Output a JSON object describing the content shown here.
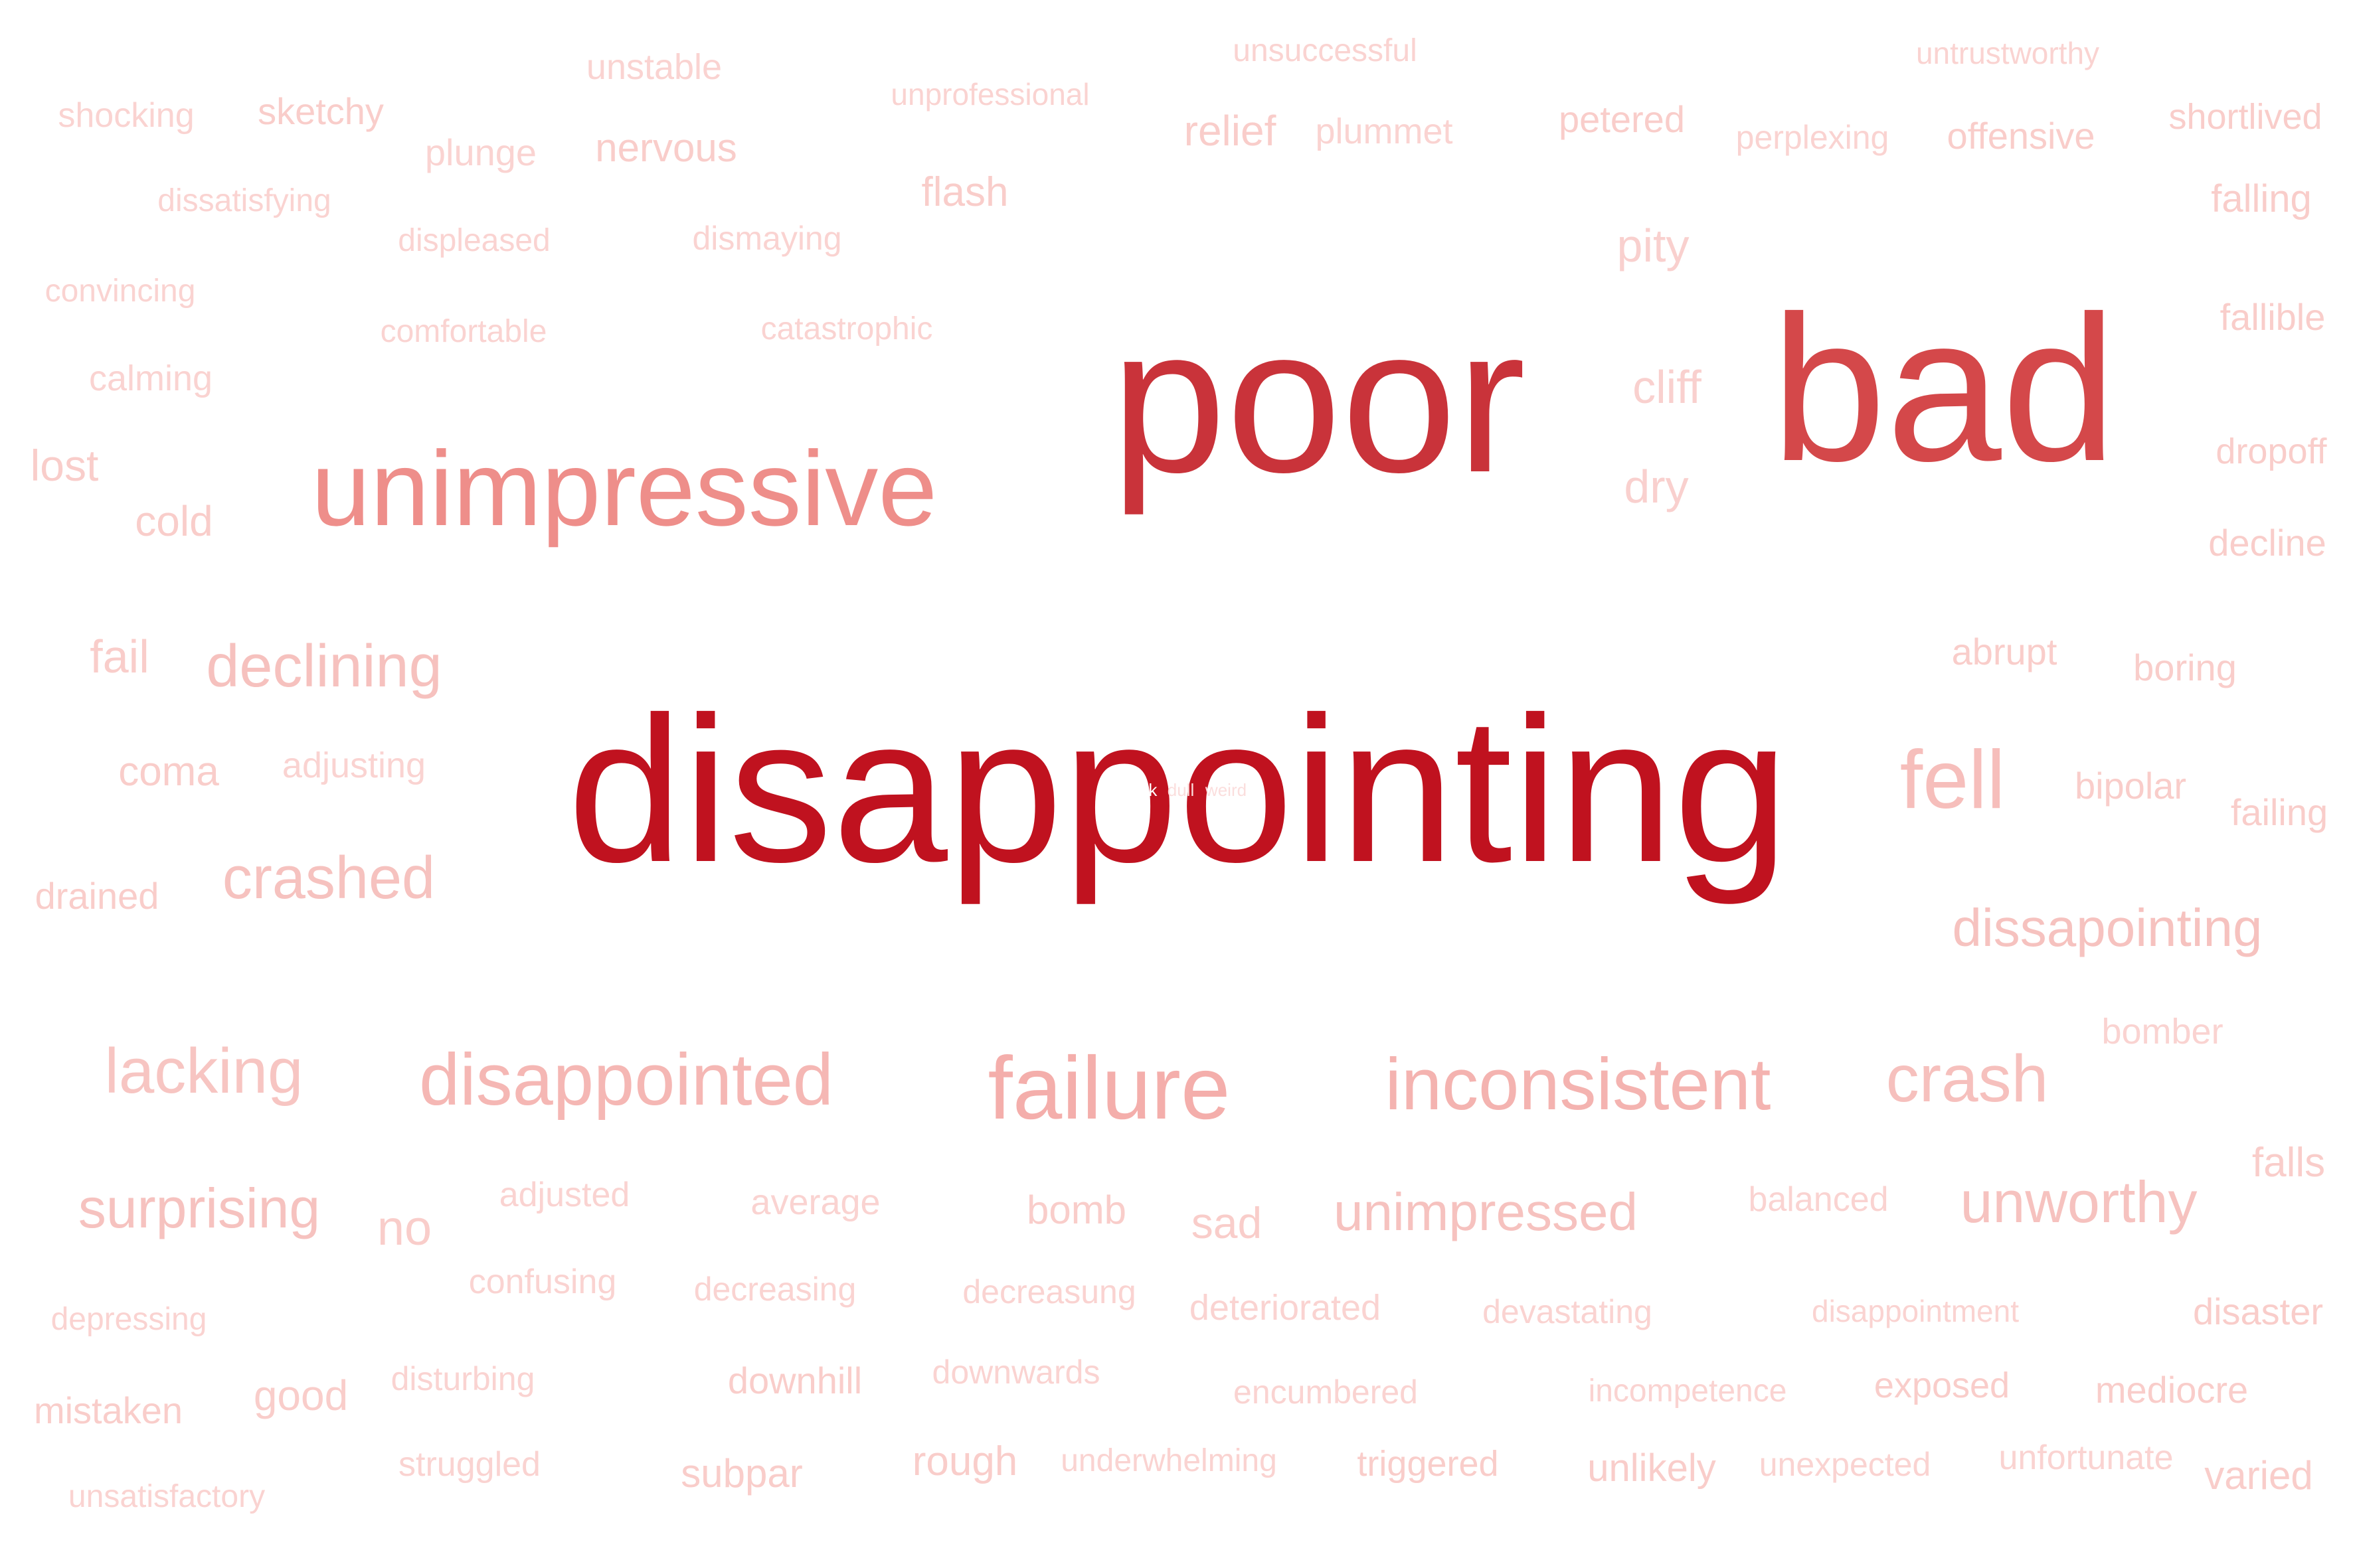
{
  "words": [
    {
      "text": "disappointing",
      "color": "#c0121f"
    },
    {
      "text": "poor",
      "color": "#c9333a"
    },
    {
      "text": "bad",
      "color": "#d4484a"
    },
    {
      "text": "unimpressive",
      "color": "#ee8e8a"
    },
    {
      "text": "failure",
      "color": "#f4aeab"
    },
    {
      "text": "inconsistent",
      "color": "#f4b3b0"
    },
    {
      "text": "disappointed",
      "color": "#f5b7b4"
    },
    {
      "text": "fell",
      "color": "#f6bebb"
    },
    {
      "text": "crash",
      "color": "#f6c0bd"
    },
    {
      "text": "crashed",
      "color": "#f6c2bf"
    },
    {
      "text": "declining",
      "color": "#f6c1be"
    },
    {
      "text": "lacking",
      "color": "#f7c5c2"
    },
    {
      "text": "surprising",
      "color": "#f6c2bf"
    },
    {
      "text": "dissapointing",
      "color": "#f6c2bf"
    },
    {
      "text": "unimpressed",
      "color": "#f6c2bf"
    },
    {
      "text": "unworthy",
      "color": "#f6c2bf"
    },
    {
      "text": "cliff",
      "color": "#f9d0ce"
    },
    {
      "text": "dry",
      "color": "#f9d0ce"
    },
    {
      "text": "pity",
      "color": "#f9d0ce"
    },
    {
      "text": "sketchy",
      "color": "#f9cdca"
    },
    {
      "text": "unstable",
      "color": "#fad3d1"
    },
    {
      "text": "shocking",
      "color": "#fad3d1"
    },
    {
      "text": "plunge",
      "color": "#fad3d1"
    },
    {
      "text": "nervous",
      "color": "#f9cdca"
    },
    {
      "text": "unprofessional",
      "color": "#fad3d1"
    },
    {
      "text": "unsuccessful",
      "color": "#fad3d1"
    },
    {
      "text": "untrustworthy",
      "color": "#fad3d1"
    },
    {
      "text": "relief",
      "color": "#f9cdca"
    },
    {
      "text": "plummet",
      "color": "#fad3d1"
    },
    {
      "text": "petered",
      "color": "#f9cdca"
    },
    {
      "text": "perplexing",
      "color": "#fad3d1"
    },
    {
      "text": "offensive",
      "color": "#f9cdca"
    },
    {
      "text": "shortlived",
      "color": "#f9cdca"
    },
    {
      "text": "dissatisfying",
      "color": "#fad3d1"
    },
    {
      "text": "flash",
      "color": "#f9cdca"
    },
    {
      "text": "falling",
      "color": "#f9cdca"
    },
    {
      "text": "displeased",
      "color": "#fad3d1"
    },
    {
      "text": "dismaying",
      "color": "#fad3d1"
    },
    {
      "text": "convincing",
      "color": "#fad3d1"
    },
    {
      "text": "comfortable",
      "color": "#fad3d1"
    },
    {
      "text": "catastrophic",
      "color": "#fad3d1"
    },
    {
      "text": "fallible",
      "color": "#f9cdca"
    },
    {
      "text": "calming",
      "color": "#fad3d1"
    },
    {
      "text": "lost",
      "color": "#f9cdca"
    },
    {
      "text": "dropoff",
      "color": "#f9cdca"
    },
    {
      "text": "cold",
      "color": "#f9cdca"
    },
    {
      "text": "decline",
      "color": "#f9cdca"
    },
    {
      "text": "fail",
      "color": "#f9cdca"
    },
    {
      "text": "abrupt",
      "color": "#f9cdca"
    },
    {
      "text": "boring",
      "color": "#f9cdca"
    },
    {
      "text": "coma",
      "color": "#f9cdca"
    },
    {
      "text": "adjusting",
      "color": "#fad3d1"
    },
    {
      "text": "bipolar",
      "color": "#f9cdca"
    },
    {
      "text": "failing",
      "color": "#f9cdca"
    },
    {
      "text": "drained",
      "color": "#f9cdca"
    },
    {
      "text": "bomber",
      "color": "#fad3d1"
    },
    {
      "text": "falls",
      "color": "#f9cdca"
    },
    {
      "text": "no",
      "color": "#f9cdca"
    },
    {
      "text": "adjusted",
      "color": "#fad3d1"
    },
    {
      "text": "average",
      "color": "#fad3d1"
    },
    {
      "text": "bomb",
      "color": "#f9cdca"
    },
    {
      "text": "sad",
      "color": "#f9cdca"
    },
    {
      "text": "balanced",
      "color": "#fad3d1"
    },
    {
      "text": "confusing",
      "color": "#fad3d1"
    },
    {
      "text": "decreasing",
      "color": "#fad3d1"
    },
    {
      "text": "decreasung",
      "color": "#fad3d1"
    },
    {
      "text": "deteriorated",
      "color": "#fad3d1"
    },
    {
      "text": "devastating",
      "color": "#fad3d1"
    },
    {
      "text": "disappointment",
      "color": "#fad3d1"
    },
    {
      "text": "depressing",
      "color": "#fad3d1"
    },
    {
      "text": "disaster",
      "color": "#f9cdca"
    },
    {
      "text": "disturbing",
      "color": "#fad3d1"
    },
    {
      "text": "downhill",
      "color": "#f9cdca"
    },
    {
      "text": "downwards",
      "color": "#fad3d1"
    },
    {
      "text": "good",
      "color": "#f9cdca"
    },
    {
      "text": "mistaken",
      "color": "#f9cdca"
    },
    {
      "text": "encumbered",
      "color": "#fad3d1"
    },
    {
      "text": "incompetence",
      "color": "#fad3d1"
    },
    {
      "text": "exposed",
      "color": "#f9cdca"
    },
    {
      "text": "mediocre",
      "color": "#f9cdca"
    },
    {
      "text": "struggled",
      "color": "#fad3d1"
    },
    {
      "text": "subpar",
      "color": "#f9cdca"
    },
    {
      "text": "rough",
      "color": "#f9cdca"
    },
    {
      "text": "underwhelming",
      "color": "#fad3d1"
    },
    {
      "text": "triggered",
      "color": "#f9cdca"
    },
    {
      "text": "unlikely",
      "color": "#f9cdca"
    },
    {
      "text": "unexpected",
      "color": "#fad3d1"
    },
    {
      "text": "unfortunate",
      "color": "#fad3d1"
    },
    {
      "text": "varied",
      "color": "#f9cdca"
    },
    {
      "text": "unsatisfactory",
      "color": "#fad3d1"
    }
  ],
  "tiny_words": [
    {
      "text": "weak",
      "color": "#ffffff"
    },
    {
      "text": "dull",
      "color": "#fbdedd"
    },
    {
      "text": "weird",
      "color": "#fbdedd"
    }
  ]
}
